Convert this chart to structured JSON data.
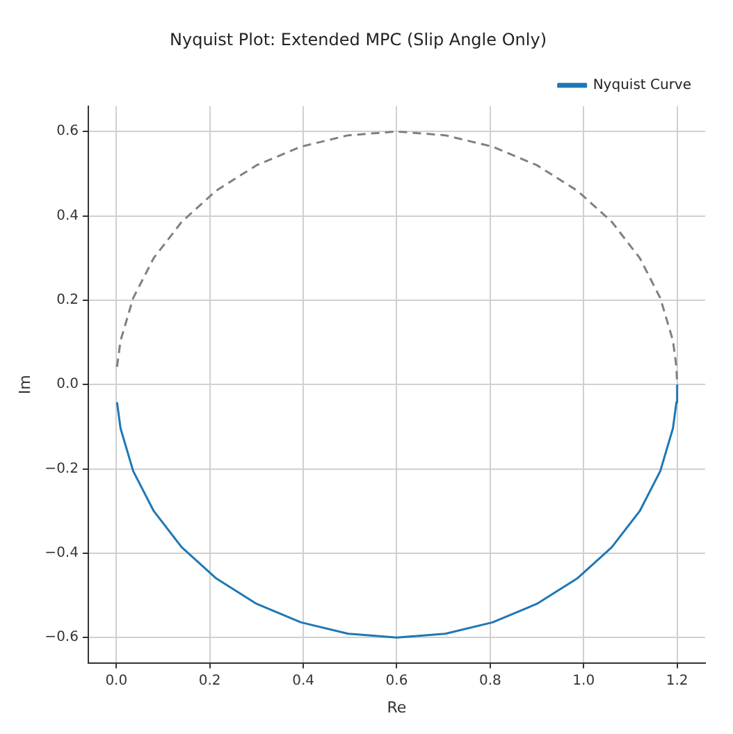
{
  "chart_data": {
    "type": "line",
    "title": "Nyquist Plot: Extended MPC (Slip Angle Only)",
    "xlabel": "Re",
    "ylabel": "Im",
    "series": [
      {
        "name": "Nyquist Curve",
        "color": "#1f77b4",
        "line_style": "solid",
        "x": [
          0.0015,
          0.009,
          0.036,
          0.08,
          0.14,
          0.214,
          0.3,
          0.395,
          0.496,
          0.6,
          0.704,
          0.805,
          0.9,
          0.986,
          1.06,
          1.12,
          1.164,
          1.191,
          1.1985,
          1.2
        ],
        "values": [
          -0.042,
          -0.104,
          -0.205,
          -0.3,
          -0.386,
          -0.46,
          -0.52,
          -0.564,
          -0.591,
          -0.6,
          -0.591,
          -0.564,
          -0.52,
          -0.46,
          -0.386,
          -0.3,
          -0.205,
          -0.104,
          -0.042,
          0.0
        ]
      },
      {
        "color": "#808080",
        "line_style": "dashed",
        "x": [
          0.0015,
          0.009,
          0.036,
          0.08,
          0.14,
          0.214,
          0.3,
          0.395,
          0.496,
          0.6,
          0.704,
          0.805,
          0.9,
          0.986,
          1.06,
          1.12,
          1.164,
          1.191,
          1.1985,
          1.2
        ],
        "values": [
          0.042,
          0.104,
          0.205,
          0.3,
          0.386,
          0.46,
          0.52,
          0.564,
          0.591,
          0.6,
          0.591,
          0.564,
          0.52,
          0.46,
          0.386,
          0.3,
          0.205,
          0.104,
          0.042,
          0.0
        ]
      }
    ],
    "xlim": [
      -0.06,
      1.26
    ],
    "ylim": [
      -0.66,
      0.66
    ],
    "xticks": [
      {
        "value": 0,
        "label": "0.0"
      },
      {
        "value": 0.2,
        "label": "0.2"
      },
      {
        "value": 0.4,
        "label": "0.4"
      },
      {
        "value": 0.6,
        "label": "0.6"
      },
      {
        "value": 0.8,
        "label": "0.8"
      },
      {
        "value": 1.0,
        "label": "1.0"
      },
      {
        "value": 1.2,
        "label": "1.2"
      }
    ],
    "yticks": [
      {
        "value": -0.6,
        "label": "−0.6"
      },
      {
        "value": -0.4,
        "label": "−0.4"
      },
      {
        "value": -0.2,
        "label": "−0.2"
      },
      {
        "value": 0,
        "label": "0.0"
      },
      {
        "value": 0.2,
        "label": "0.2"
      },
      {
        "value": 0.4,
        "label": "0.4"
      },
      {
        "value": 0.6,
        "label": "0.6"
      }
    ],
    "grid": true,
    "legend": "top right",
    "marker": "none"
  }
}
